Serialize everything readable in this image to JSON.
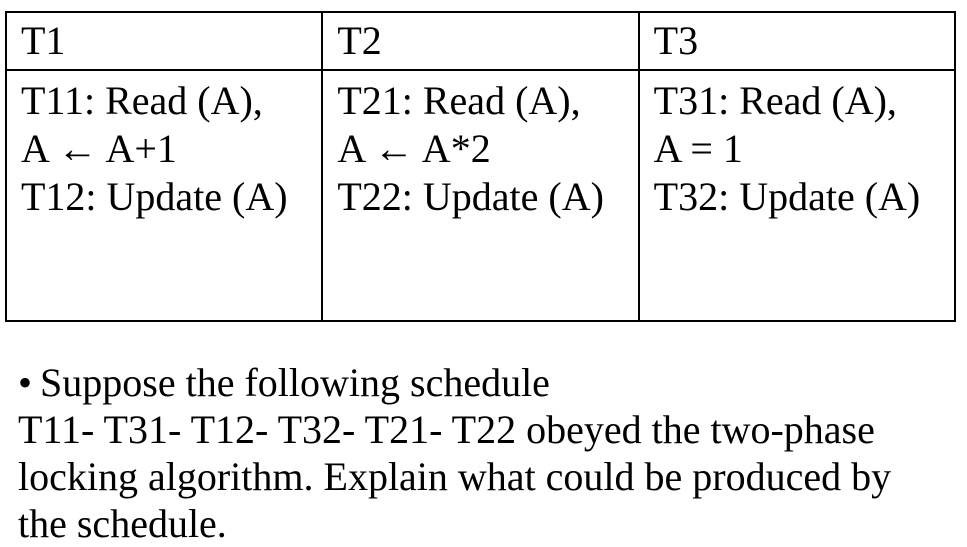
{
  "table": {
    "headers": [
      "T1",
      "T2",
      "T3"
    ],
    "cells": [
      [
        "T11: Read (A),",
        "A ← A+1",
        "T12: Update (A)"
      ],
      [
        "T21: Read (A),",
        "A ← A*2",
        "T22: Update (A)"
      ],
      [
        "T31: Read (A),",
        "A = 1",
        "T32: Update (A)"
      ]
    ]
  },
  "question": {
    "bullet": "•",
    "lines": [
      "Suppose the following schedule",
      "T11- T31- T12- T32- T21- T22 obeyed the two-phase",
      "locking algorithm. Explain what could be produced by",
      "the schedule."
    ]
  }
}
